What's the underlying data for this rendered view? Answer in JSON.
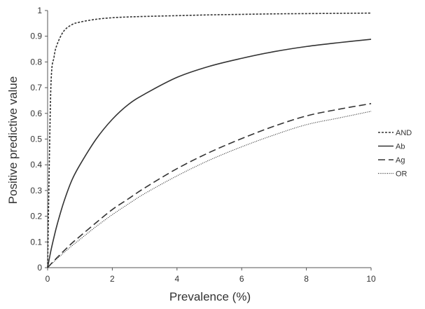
{
  "chart_data": {
    "type": "line",
    "title": "",
    "xlabel": "Prevalence (%)",
    "ylabel": "Positive predictive value",
    "xlim": [
      0,
      10
    ],
    "ylim": [
      0,
      1
    ],
    "xticks": [
      0,
      2,
      4,
      6,
      8,
      10
    ],
    "yticks": [
      0,
      0.1,
      0.2,
      0.3,
      0.4,
      0.5,
      0.6,
      0.7,
      0.8,
      0.9,
      1
    ],
    "grid": false,
    "legend_position": "right",
    "x": [
      0,
      0.1,
      0.2,
      0.3,
      0.5,
      0.75,
      1,
      1.5,
      2,
      2.5,
      3,
      4,
      5,
      6,
      7,
      8,
      9,
      10
    ],
    "series": [
      {
        "name": "AND",
        "line_style": "short-dash",
        "values": [
          0,
          0.7,
          0.82,
          0.87,
          0.92,
          0.945,
          0.955,
          0.966,
          0.972,
          0.975,
          0.977,
          0.98,
          0.983,
          0.985,
          0.987,
          0.988,
          0.989,
          0.99
        ]
      },
      {
        "name": "Ab",
        "line_style": "solid",
        "values": [
          0,
          0.065,
          0.12,
          0.17,
          0.255,
          0.34,
          0.4,
          0.5,
          0.577,
          0.635,
          0.675,
          0.74,
          0.783,
          0.814,
          0.84,
          0.86,
          0.875,
          0.888
        ]
      },
      {
        "name": "Ag",
        "line_style": "long-dash",
        "values": [
          0,
          0.014,
          0.027,
          0.04,
          0.065,
          0.095,
          0.122,
          0.175,
          0.226,
          0.268,
          0.31,
          0.385,
          0.448,
          0.502,
          0.55,
          0.59,
          0.616,
          0.638
        ]
      },
      {
        "name": "OR",
        "line_style": "dotted",
        "values": [
          0,
          0.012,
          0.024,
          0.036,
          0.058,
          0.085,
          0.11,
          0.16,
          0.206,
          0.248,
          0.288,
          0.357,
          0.418,
          0.47,
          0.516,
          0.556,
          0.582,
          0.608
        ]
      }
    ]
  },
  "colors": {
    "axis": "#555555",
    "series": "#333333"
  }
}
